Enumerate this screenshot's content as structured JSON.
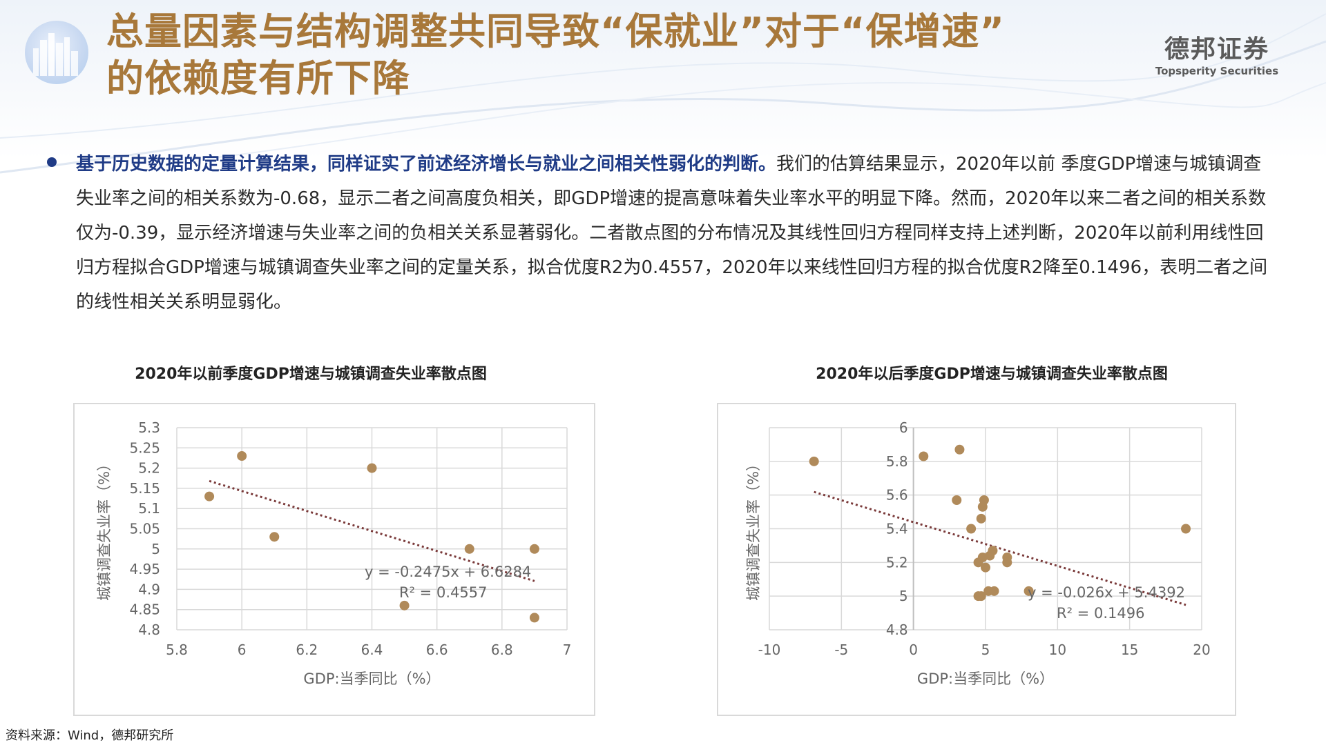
{
  "header": {
    "title_line1": "总量因素与结构调整共同导致“保就业”对于“保增速”",
    "title_line2": "的依赖度有所下降",
    "brand_cn": "德邦证券",
    "brand_en": "Topsperity Securities"
  },
  "body": {
    "highlight": "基于历史数据的定量计算结果，同样证实了前述经济增长与就业之间相关性弱化的判断。",
    "text": "我们的估算结果显示，2020年以前 季度GDP增速与城镇调查失业率之间的相关系数为-0.68，显示二者之间高度负相关，即GDP增速的提高意味着失业率水平的明显下降。然而，2020年以来二者之间的相关系数仅为-0.39，显示经济增速与失业率之间的负相关关系显著弱化。二者散点图的分布情况及其线性回归方程同样支持上述判断，2020年以前利用线性回归方程拟合GDP增速与城镇调查失业率之间的定量关系，拟合优度R2为0.4557，2020年以来线性回归方程的拟合优度R2降至0.1496，表明二者之间的线性相关关系明显弱化。"
  },
  "source": "资料来源：Wind，德邦研究所",
  "colors": {
    "title": "#a8783a",
    "bullet_highlight": "#1f3b86",
    "point": "#b08a5a",
    "trendline": "#7a3a3a",
    "grid": "#d9d9d9"
  },
  "chart_data": [
    {
      "type": "scatter",
      "title": "2020年以前季度GDP增速与城镇调查失业率散点图",
      "xlabel": "GDP:当季同比（%）",
      "ylabel": "城镇调查失业率（%）",
      "xlim": [
        5.8,
        7
      ],
      "ylim": [
        4.8,
        5.3
      ],
      "xticks": [
        "5.8",
        "6",
        "6.2",
        "6.4",
        "6.6",
        "6.8",
        "7"
      ],
      "yticks": [
        "5.3",
        "5.25",
        "5.2",
        "5.15",
        "5.1",
        "5.05",
        "5",
        "4.95",
        "4.9",
        "4.85",
        "4.8"
      ],
      "grid": true,
      "points": [
        {
          "x": 5.9,
          "y": 5.13
        },
        {
          "x": 6.0,
          "y": 5.23
        },
        {
          "x": 6.1,
          "y": 5.03
        },
        {
          "x": 6.4,
          "y": 5.2
        },
        {
          "x": 6.5,
          "y": 4.86
        },
        {
          "x": 6.7,
          "y": 5.0
        },
        {
          "x": 6.9,
          "y": 5.0
        },
        {
          "x": 6.9,
          "y": 4.83
        }
      ],
      "trendline": {
        "slope": -0.2475,
        "intercept": 6.6284,
        "x_range": [
          5.9,
          6.9
        ]
      },
      "equation": "y = -0.2475x + 6.6284",
      "r2": "R² = 0.4557"
    },
    {
      "type": "scatter",
      "title": "2020年以后季度GDP增速与城镇调查失业率散点图",
      "xlabel": "GDP:当季同比（%）",
      "ylabel": "城镇调查失业率（%）",
      "xlim": [
        -10,
        20
      ],
      "ylim": [
        4.8,
        6
      ],
      "xticks": [
        "-10",
        "-5",
        "0",
        "5",
        "10",
        "15",
        "20"
      ],
      "yticks": [
        "6",
        "5.8",
        "5.6",
        "5.4",
        "5.2",
        "5",
        "4.8"
      ],
      "grid": true,
      "points": [
        {
          "x": -6.9,
          "y": 5.8
        },
        {
          "x": 0.7,
          "y": 5.83
        },
        {
          "x": 3.2,
          "y": 5.87
        },
        {
          "x": 3.0,
          "y": 5.57
        },
        {
          "x": 4.9,
          "y": 5.57
        },
        {
          "x": 4.8,
          "y": 5.53
        },
        {
          "x": 4.7,
          "y": 5.46
        },
        {
          "x": 4.0,
          "y": 5.4
        },
        {
          "x": 5.5,
          "y": 5.27
        },
        {
          "x": 5.3,
          "y": 5.24
        },
        {
          "x": 4.8,
          "y": 5.23
        },
        {
          "x": 4.5,
          "y": 5.2
        },
        {
          "x": 5.0,
          "y": 5.17
        },
        {
          "x": 6.5,
          "y": 5.23
        },
        {
          "x": 6.5,
          "y": 5.2
        },
        {
          "x": 4.7,
          "y": 5.0
        },
        {
          "x": 4.5,
          "y": 5.0
        },
        {
          "x": 5.2,
          "y": 5.03
        },
        {
          "x": 5.6,
          "y": 5.03
        },
        {
          "x": 8.0,
          "y": 5.03
        },
        {
          "x": 18.9,
          "y": 5.4
        }
      ],
      "trendline": {
        "slope": -0.026,
        "intercept": 5.4392,
        "x_range": [
          -6.9,
          18.9
        ]
      },
      "equation": "y = -0.026x + 5.4392",
      "r2": "R² = 0.1496"
    }
  ]
}
